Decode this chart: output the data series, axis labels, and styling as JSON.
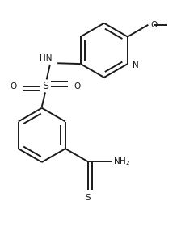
{
  "bg_color": "#ffffff",
  "line_color": "#1a1a1a",
  "line_width": 1.4,
  "font_size": 7.5,
  "figsize": [
    2.24,
    2.96
  ],
  "dpi": 100,
  "xlim": [
    -1.2,
    1.4
  ],
  "ylim": [
    -2.1,
    1.3
  ]
}
